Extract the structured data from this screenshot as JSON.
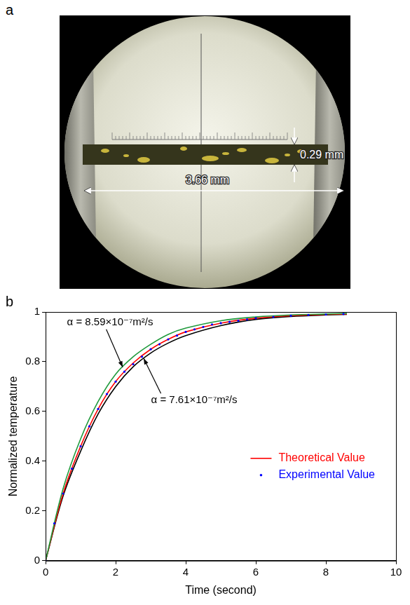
{
  "figure": {
    "panels": [
      {
        "letter": "a",
        "annotations": [
          "0.29 mm",
          "3.66 mm"
        ]
      },
      {
        "letter": "b"
      }
    ]
  },
  "chart_data": {
    "type": "line",
    "x_label": "Time (second)",
    "y_label": "Normalized temperature",
    "xlim": [
      0,
      10
    ],
    "xticks": [
      0,
      2,
      4,
      6,
      8,
      10
    ],
    "ylim": [
      0,
      1
    ],
    "yticks": [
      0,
      0.2,
      0.4,
      0.6,
      0.8,
      1
    ],
    "grid": false,
    "legend": "lower right",
    "series": [
      {
        "color": "#1f9a3c",
        "type": "line",
        "line_style": "solid",
        "marker": "none",
        "x": [
          0,
          0.5,
          1,
          1.5,
          2,
          2.5,
          3,
          3.5,
          4,
          5,
          6,
          7,
          8,
          8.6
        ],
        "values": [
          0,
          0.29,
          0.49,
          0.64,
          0.75,
          0.82,
          0.87,
          0.91,
          0.935,
          0.965,
          0.98,
          0.988,
          0.992,
          0.994
        ]
      },
      {
        "name": "Theoretical Value",
        "color": "#ff0000",
        "type": "line",
        "line_style": "solid",
        "marker": "none",
        "x": [
          0,
          0.5,
          1,
          1.5,
          2,
          2.5,
          3,
          3.5,
          4,
          5,
          6,
          7,
          8,
          8.6
        ],
        "values": [
          0,
          0.27,
          0.46,
          0.61,
          0.72,
          0.795,
          0.85,
          0.89,
          0.92,
          0.955,
          0.975,
          0.985,
          0.99,
          0.992
        ]
      },
      {
        "color": "#000000",
        "type": "line",
        "line_style": "solid",
        "marker": "none",
        "x": [
          0,
          0.5,
          1,
          1.5,
          2,
          2.5,
          3,
          3.5,
          4,
          5,
          6,
          7,
          8,
          8.6
        ],
        "values": [
          0,
          0.26,
          0.44,
          0.59,
          0.7,
          0.78,
          0.835,
          0.875,
          0.905,
          0.945,
          0.97,
          0.982,
          0.988,
          0.99
        ]
      },
      {
        "name": "Experimental Value",
        "color": "#0000ff",
        "type": "scatter",
        "line_style": "none",
        "marker": "dot",
        "x": [
          0,
          0.25,
          0.5,
          0.75,
          1,
          1.25,
          1.5,
          1.75,
          2,
          2.25,
          2.5,
          2.75,
          3,
          3.25,
          3.5,
          3.75,
          4,
          4.25,
          4.5,
          4.75,
          5,
          5.25,
          5.5,
          5.75,
          6,
          6.5,
          7,
          7.5,
          8,
          8.5
        ],
        "values": [
          0,
          0.15,
          0.27,
          0.37,
          0.46,
          0.54,
          0.61,
          0.67,
          0.72,
          0.76,
          0.79,
          0.82,
          0.85,
          0.87,
          0.89,
          0.905,
          0.92,
          0.93,
          0.94,
          0.95,
          0.955,
          0.96,
          0.965,
          0.97,
          0.975,
          0.98,
          0.985,
          0.988,
          0.99,
          0.992
        ]
      }
    ],
    "annotations": [
      {
        "text": "α = 8.59×10⁻⁷m²/s",
        "x": 2.2,
        "y": 0.778
      },
      {
        "text": "α = 7.61×10⁻⁷m²/s",
        "x": 2.8,
        "y": 0.813
      }
    ]
  }
}
